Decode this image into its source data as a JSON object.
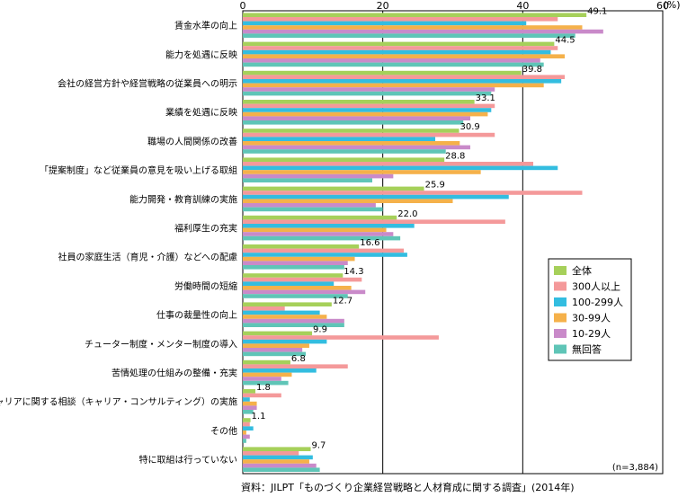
{
  "chart_data": {
    "type": "bar",
    "orientation": "horizontal",
    "categories": [
      "賃金水準の向上",
      "能力を処遇に反映",
      "会社の経営方針や経営戦略の従業員への明示",
      "業績を処遇に反映",
      "職場の人間関係の改善",
      "「提案制度」など従業員の意見を吸い上げる取組",
      "能力開発・教育訓練の実施",
      "福利厚生の充実",
      "社員の家庭生活（育児・介護）などへの配慮",
      "労働時間の短縮",
      "仕事の裁量性の向上",
      "チューター制度・メンター制度の導入",
      "苦情処理の仕組みの整備・充実",
      "キャリアに関する相談（キャリア・コンサルティング）の実施",
      "その他",
      "特に取組は行っていない"
    ],
    "series": [
      {
        "name": "全体",
        "color": "#a6d05a",
        "values": [
          49.1,
          44.5,
          39.8,
          33.1,
          30.9,
          28.8,
          25.9,
          22.0,
          16.6,
          14.3,
          12.7,
          9.9,
          6.8,
          1.8,
          1.1,
          9.7
        ]
      },
      {
        "name": "300人以上",
        "color": "#f4999a",
        "values": [
          45,
          45,
          46,
          36,
          36,
          41.5,
          48.5,
          37.5,
          23,
          17,
          6,
          28,
          15,
          5.5,
          1,
          8
        ]
      },
      {
        "name": "100-299人",
        "color": "#33bde0",
        "values": [
          40.5,
          44,
          45.5,
          35.5,
          27.5,
          45,
          38,
          24.5,
          23.5,
          13,
          11,
          12,
          10.5,
          1,
          1.5,
          10
        ]
      },
      {
        "name": "30-99人",
        "color": "#f5b14a",
        "values": [
          48.5,
          46,
          43,
          35,
          31,
          34,
          30,
          20.5,
          16,
          15.5,
          12,
          9.5,
          7,
          2,
          0.5,
          9.5
        ]
      },
      {
        "name": "10-29人",
        "color": "#c98ac9",
        "values": [
          51.5,
          42.5,
          36,
          32.5,
          32.5,
          21.5,
          19,
          21.5,
          15,
          17.5,
          14.5,
          8.5,
          5.5,
          2,
          1,
          10.5
        ]
      },
      {
        "name": "無回答",
        "color": "#5fc5b7",
        "values": [
          47.5,
          43,
          35.5,
          31.5,
          29,
          18.5,
          20,
          22.5,
          14.5,
          15,
          14.5,
          9,
          6.5,
          1.5,
          0.5,
          11
        ]
      }
    ],
    "label_series": "全体",
    "xlim": [
      0,
      60
    ],
    "xticks": [
      0,
      20,
      40,
      60
    ],
    "xtick_labels": [
      "0",
      "20",
      "40",
      "60"
    ],
    "unit_label": "(%)",
    "grid": true,
    "legend_position": "right",
    "note": "(n=3,884)",
    "source": "資料：JILPT「ものづくり企業経営戦略と人材育成に関する調査」(2014年)"
  }
}
